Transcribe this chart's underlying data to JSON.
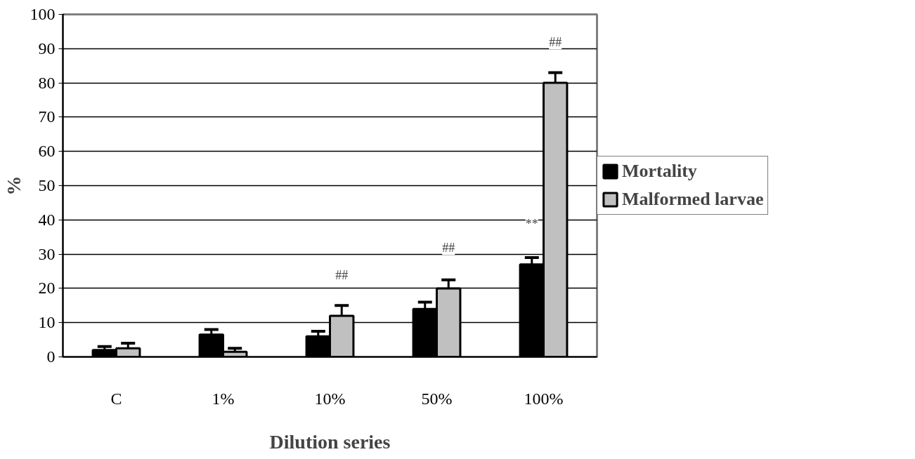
{
  "chart_data": {
    "type": "bar",
    "xlabel": "Dilution series",
    "ylabel": "%",
    "categories": [
      "C",
      "1%",
      "10%",
      "50%",
      "100%"
    ],
    "series": [
      {
        "name": "Mortality",
        "color": "#000000",
        "values": [
          2,
          6.5,
          6,
          14,
          27
        ],
        "errors": [
          1,
          1.5,
          1.5,
          2,
          2
        ]
      },
      {
        "name": "Malformed larvae",
        "color": "#c0c0c0",
        "values": [
          2.5,
          1.5,
          12,
          20,
          80
        ],
        "errors": [
          1.5,
          1,
          3,
          2.5,
          3
        ]
      }
    ],
    "ylim": [
      0,
      100
    ],
    "yticks": [
      0,
      10,
      20,
      30,
      40,
      50,
      60,
      70,
      80,
      90,
      100
    ],
    "grid": "y",
    "legend": "right",
    "annotations": [
      {
        "text": "##",
        "x": "10%",
        "y": 12
      },
      {
        "text": "##",
        "x": "50%",
        "y": 20
      },
      {
        "text": "**",
        "x": "100%",
        "y": 27
      },
      {
        "text": "##",
        "x": "100%",
        "y": 80
      }
    ]
  }
}
